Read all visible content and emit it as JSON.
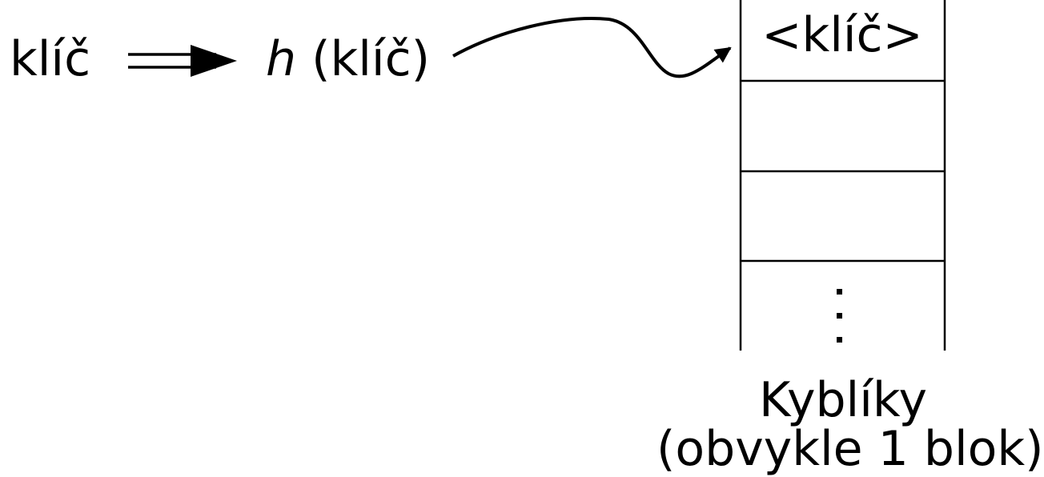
{
  "diagram": {
    "key_label": "klíč",
    "hash_function": {
      "symbol": "h",
      "argument": "(klíč)"
    },
    "buckets": [
      {
        "content": "<klíč>"
      },
      {
        "content": ""
      },
      {
        "content": ""
      },
      {
        "content": ""
      }
    ],
    "continuation_marker": "⋮",
    "caption": {
      "line1": "Kyblíky",
      "line2": "(obvykle 1 blok)"
    },
    "colors": {
      "ink": "#000000",
      "background": "#ffffff"
    }
  }
}
